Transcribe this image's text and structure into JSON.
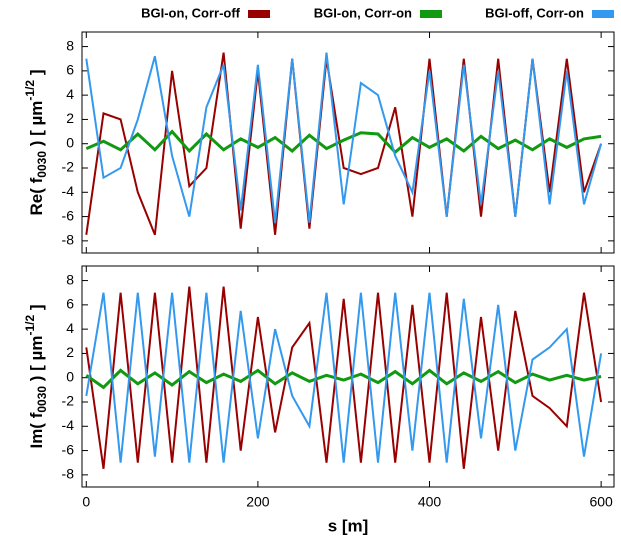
{
  "chart_data": [
    {
      "type": "line",
      "legend": "top",
      "ylabel": {
        "main": "Re( f",
        "sub": "0030",
        "mid": " )  [ µm",
        "sup": "-1/2",
        "end": " ]"
      },
      "x": [
        0,
        20,
        40,
        60,
        80,
        100,
        120,
        140,
        160,
        180,
        200,
        220,
        240,
        260,
        280,
        300,
        320,
        340,
        360,
        380,
        400,
        420,
        440,
        460,
        480,
        500,
        520,
        540,
        560,
        580,
        600
      ],
      "xlim": [
        -5,
        615
      ],
      "ylim": [
        -9,
        9.2
      ],
      "yticks": [
        -8,
        -6,
        -4,
        -2,
        0,
        2,
        4,
        6,
        8
      ],
      "series": [
        {
          "name": "BGI-on, Corr-off",
          "color": "#990000",
          "values": [
            -7.5,
            2.5,
            2,
            -4,
            -7.5,
            6,
            -3.5,
            -2,
            7.5,
            -7,
            6,
            -7.5,
            7,
            -7,
            7,
            -2,
            -2.5,
            -2,
            3,
            -6,
            7,
            -6,
            7,
            -6,
            7,
            -6,
            7,
            -4,
            7,
            -4,
            0
          ]
        },
        {
          "name": "BGI-on, Corr-on",
          "color": "#119911",
          "values": [
            -0.4,
            0.2,
            -0.5,
            0.8,
            -0.5,
            1,
            -0.6,
            0.8,
            -0.5,
            0.4,
            -0.3,
            0.5,
            -0.6,
            0.7,
            -0.4,
            0.3,
            0.9,
            0.8,
            -0.7,
            0.5,
            -0.3,
            0.4,
            -0.6,
            0.6,
            -0.4,
            0.3,
            -0.5,
            0.4,
            -0.3,
            0.4,
            0.6
          ]
        },
        {
          "name": "BGI-off, Corr-on",
          "color": "#3399ee",
          "values": [
            7,
            -2.8,
            -2,
            2,
            7.2,
            -1,
            -6,
            3,
            6.5,
            -5.5,
            6.5,
            -6.5,
            7,
            -6.5,
            7.5,
            -5,
            5,
            4,
            -1,
            -4,
            6,
            -6,
            6.5,
            -5,
            6,
            -6,
            7,
            -5,
            6,
            -5,
            0
          ]
        }
      ]
    },
    {
      "type": "line",
      "ylabel": {
        "main": "Im( f",
        "sub": "0030",
        "mid": " )  [ µm",
        "sup": "-1/2",
        "end": " ]"
      },
      "x": [
        0,
        20,
        40,
        60,
        80,
        100,
        120,
        140,
        160,
        180,
        200,
        220,
        240,
        260,
        280,
        300,
        320,
        340,
        360,
        380,
        400,
        420,
        440,
        460,
        480,
        500,
        520,
        540,
        560,
        580,
        600
      ],
      "xlim": [
        -5,
        615
      ],
      "ylim": [
        -9,
        9.2
      ],
      "yticks": [
        -8,
        -6,
        -4,
        -2,
        0,
        2,
        4,
        6,
        8
      ],
      "xticks": [
        0,
        200,
        400,
        600
      ],
      "xlabel": "s [m]",
      "series": [
        {
          "color": "#990000",
          "values": [
            2.5,
            -7.5,
            7,
            -7,
            7,
            -7,
            7.5,
            -7,
            7.5,
            -6,
            5,
            -4.5,
            2.5,
            4.5,
            -7,
            6.5,
            -7,
            7,
            -7,
            6,
            -7,
            7,
            -7.5,
            5,
            -6,
            5.5,
            -1.5,
            -2.5,
            -4,
            7,
            -2
          ]
        },
        {
          "color": "#119911",
          "values": [
            0.2,
            -0.8,
            0.6,
            -0.5,
            0.4,
            -0.6,
            0.5,
            -0.4,
            0.3,
            -0.3,
            0.6,
            -0.5,
            0.4,
            -0.3,
            0.2,
            -0.2,
            0.3,
            -0.4,
            0.5,
            -0.5,
            0.6,
            -0.5,
            0.4,
            -0.3,
            0.5,
            -0.4,
            0.3,
            -0.2,
            0.2,
            -0.2,
            0.1
          ]
        },
        {
          "color": "#3399ee",
          "values": [
            -1.5,
            7,
            -7,
            7,
            -6.5,
            7,
            -7,
            7,
            -7,
            5.5,
            -5,
            4,
            -1.5,
            -4,
            7,
            -7,
            7,
            -7,
            7,
            -6,
            7,
            -7,
            6.5,
            -5,
            6,
            -6,
            1.5,
            2.5,
            4,
            -6.5,
            2
          ]
        }
      ]
    }
  ]
}
